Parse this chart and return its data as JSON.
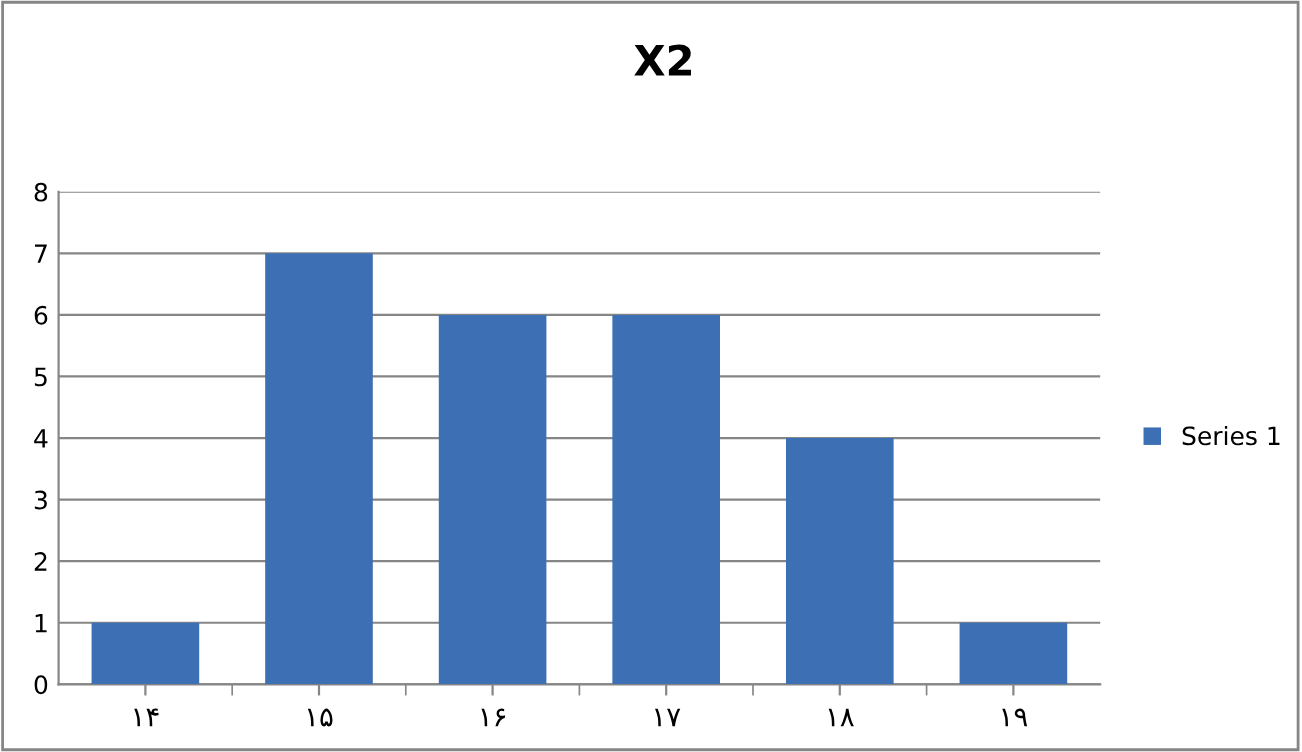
{
  "chart_data": {
    "type": "bar",
    "title": "X2",
    "categories": [
      "۱۴",
      "۱۵",
      "۱۶",
      "۱۷",
      "۱۸",
      "۱۹"
    ],
    "series": [
      {
        "name": "Series 1",
        "color": "#3d6fb4",
        "values": [
          1,
          7,
          6,
          6,
          4,
          1
        ]
      }
    ],
    "ylim": [
      0,
      8
    ],
    "yticks": [
      0,
      1,
      2,
      3,
      4,
      5,
      6,
      7,
      8
    ],
    "grid": "y",
    "legend": "right"
  }
}
